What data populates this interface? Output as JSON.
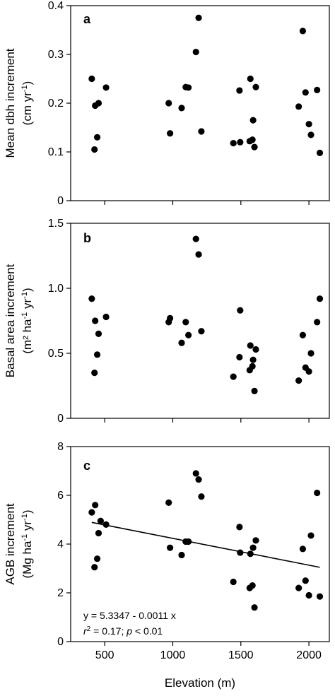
{
  "chart_data": [
    {
      "type": "scatter",
      "panel_label": "a",
      "ylabel_line1": "Mean dbh increment",
      "ylabel_line2": "(cm yr",
      "ylabel_sup": "-1",
      "ylabel_end": ")",
      "xlim": [
        250,
        2150
      ],
      "ylim": [
        0,
        0.4
      ],
      "yticks": [
        0,
        0.1,
        0.2,
        0.3,
        0.4
      ],
      "ytick_labels": [
        "0",
        "0.1",
        "0.2",
        "0.3",
        "0.4"
      ],
      "xticks": [
        500,
        1000,
        1500,
        2000
      ],
      "x": [
        405,
        425,
        430,
        445,
        455,
        510,
        970,
        980,
        1065,
        1095,
        1115,
        1170,
        1190,
        1210,
        1445,
        1490,
        1495,
        1565,
        1570,
        1585,
        1590,
        1600,
        1610,
        1925,
        1955,
        1975,
        2000,
        2015,
        2060,
        2080
      ],
      "y": [
        0.25,
        0.105,
        0.195,
        0.13,
        0.2,
        0.232,
        0.2,
        0.138,
        0.19,
        0.233,
        0.232,
        0.305,
        0.375,
        0.142,
        0.118,
        0.226,
        0.12,
        0.122,
        0.25,
        0.125,
        0.165,
        0.11,
        0.233,
        0.193,
        0.348,
        0.222,
        0.157,
        0.135,
        0.227,
        0.098
      ],
      "grid": false
    },
    {
      "type": "scatter",
      "panel_label": "b",
      "ylabel_line1": "Basal area increment",
      "ylabel_line2": "(m² ha",
      "ylabel_sup": "-1",
      "ylabel_mid": " yr",
      "ylabel_sup2": "-1",
      "ylabel_end": ")",
      "xlim": [
        250,
        2150
      ],
      "ylim": [
        0,
        1.5
      ],
      "yticks": [
        0,
        0.5,
        1.0,
        1.5
      ],
      "ytick_labels": [
        "0",
        "0.5",
        "1.0",
        "1.5"
      ],
      "xticks": [
        500,
        1000,
        1500,
        2000
      ],
      "x": [
        405,
        425,
        430,
        445,
        455,
        510,
        970,
        980,
        1065,
        1095,
        1115,
        1170,
        1190,
        1210,
        1445,
        1490,
        1495,
        1565,
        1570,
        1585,
        1590,
        1600,
        1610,
        1925,
        1955,
        1975,
        2000,
        2015,
        2060,
        2080
      ],
      "y": [
        0.92,
        0.35,
        0.75,
        0.49,
        0.65,
        0.78,
        0.74,
        0.77,
        0.58,
        0.74,
        0.64,
        1.38,
        1.26,
        0.67,
        0.32,
        0.47,
        0.83,
        0.37,
        0.56,
        0.4,
        0.45,
        0.21,
        0.53,
        0.29,
        0.64,
        0.39,
        0.36,
        0.5,
        0.74,
        0.92
      ],
      "grid": false
    },
    {
      "type": "scatter",
      "panel_label": "c",
      "ylabel_line1": "AGB increment",
      "ylabel_line2": "(Mg ha",
      "ylabel_sup": "-1",
      "ylabel_mid": " yr",
      "ylabel_sup2": "-1",
      "ylabel_end": ")",
      "xlabel": "Elevation (m)",
      "xlim": [
        250,
        2150
      ],
      "ylim": [
        0,
        8
      ],
      "yticks": [
        0,
        2,
        4,
        6,
        8
      ],
      "ytick_labels": [
        "0",
        "2",
        "4",
        "6",
        "8"
      ],
      "xticks": [
        500,
        1000,
        1500,
        2000
      ],
      "xtick_labels": [
        "500",
        "1000",
        "1500",
        "2000"
      ],
      "x": [
        405,
        425,
        430,
        445,
        455,
        470,
        510,
        970,
        980,
        1065,
        1095,
        1115,
        1170,
        1190,
        1210,
        1445,
        1490,
        1495,
        1565,
        1570,
        1585,
        1590,
        1600,
        1610,
        1925,
        1955,
        1975,
        2000,
        2015,
        2060,
        2080
      ],
      "y": [
        5.3,
        3.05,
        5.6,
        3.4,
        4.45,
        4.95,
        4.8,
        5.7,
        3.85,
        3.55,
        4.1,
        4.1,
        6.9,
        6.65,
        5.95,
        2.45,
        4.7,
        3.65,
        2.2,
        3.6,
        2.3,
        3.85,
        1.4,
        4.15,
        2.2,
        3.8,
        2.5,
        1.9,
        4.35,
        6.1,
        1.85
      ],
      "regression": {
        "intercept": 5.3347,
        "slope": -0.0011,
        "x_range": [
          405,
          2080
        ]
      },
      "eq_line1": "y = 5.3347 - 0.0011 x",
      "eq_r": "r",
      "eq_r_sup": "2",
      "eq_mid": " = 0.17; ",
      "eq_p": "p",
      "eq_end": " < 0.01",
      "grid": false
    }
  ]
}
